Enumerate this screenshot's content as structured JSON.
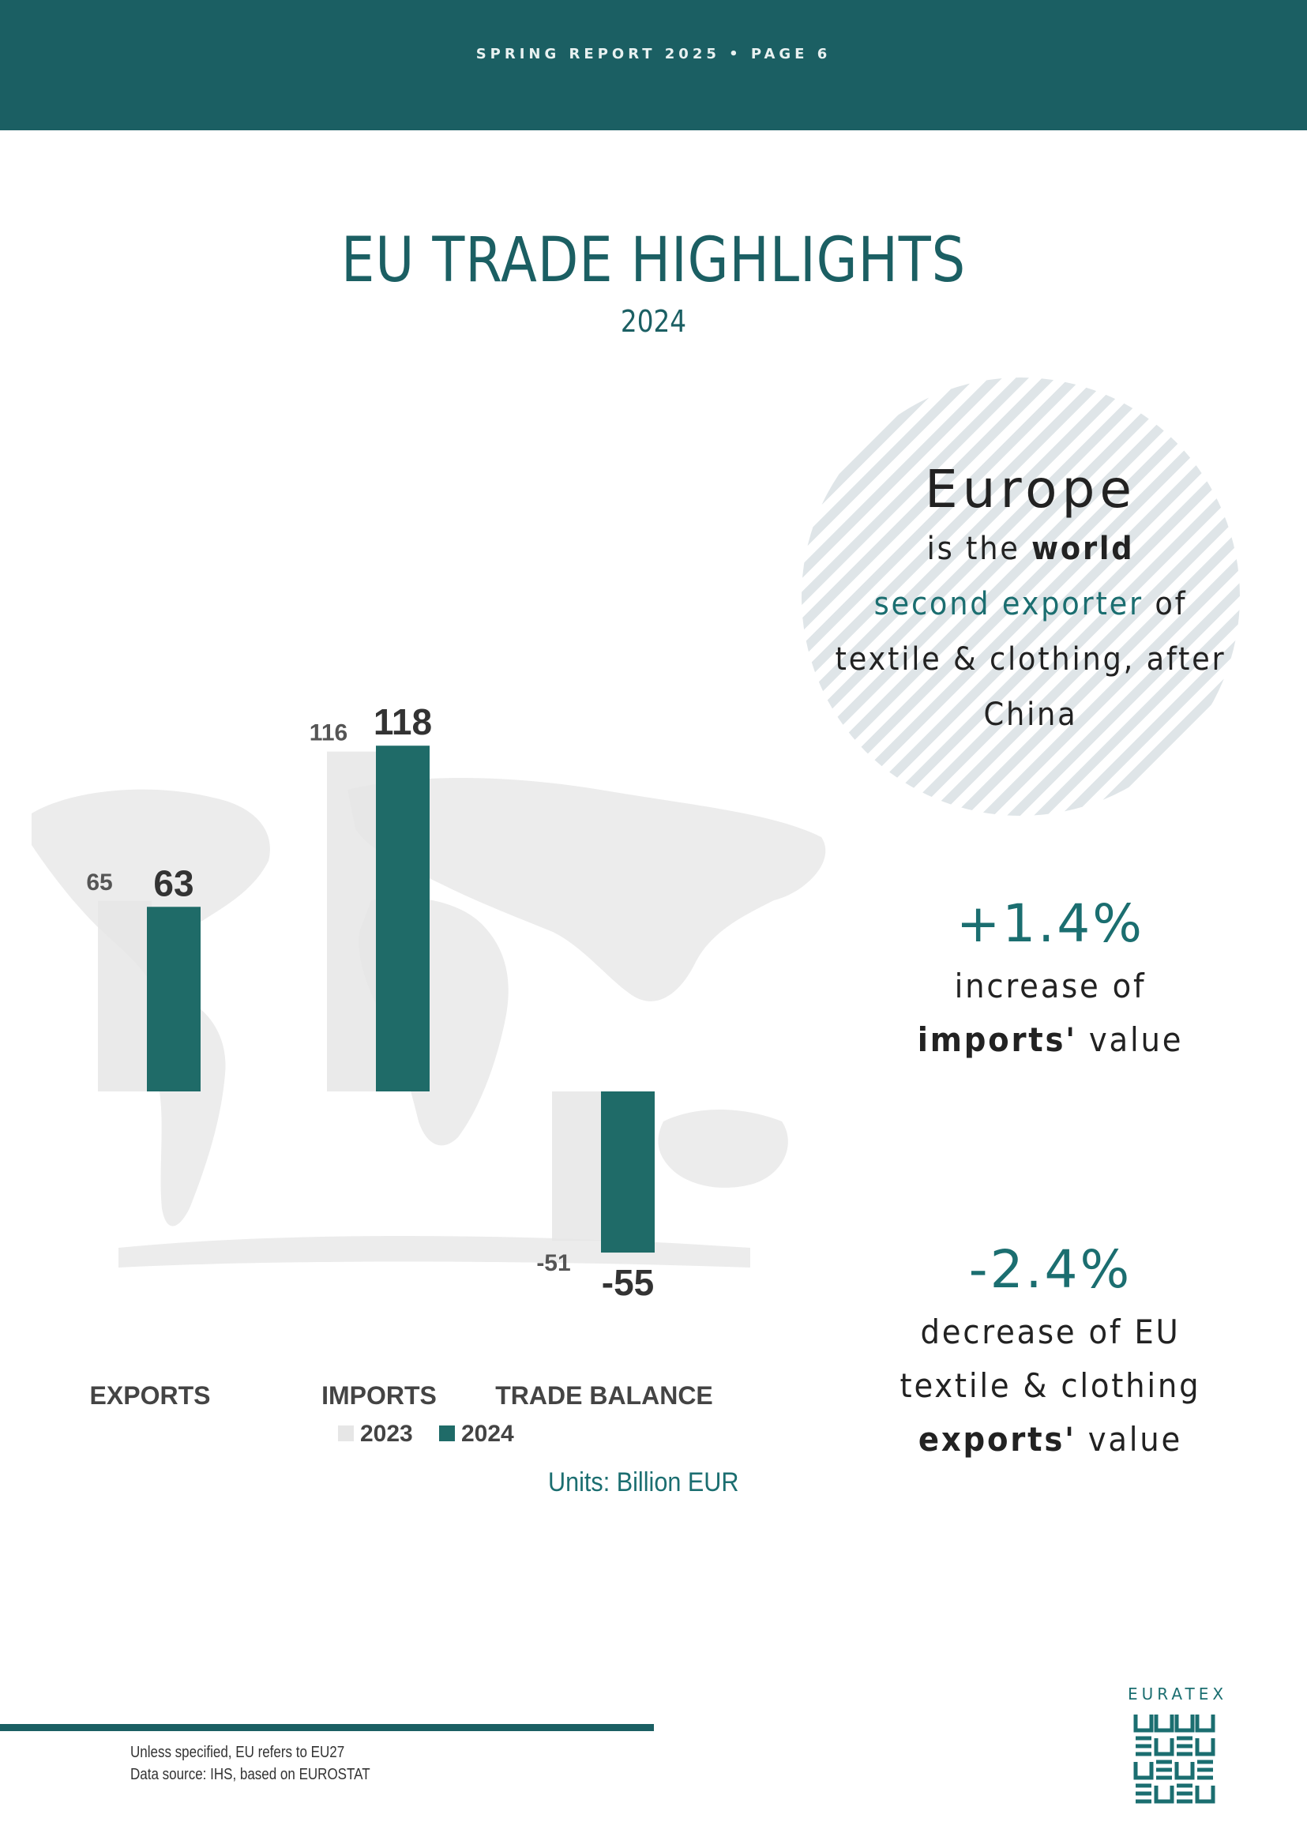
{
  "header": {
    "running_title": "SPRING REPORT 2025 • PAGE 6"
  },
  "page": {
    "title": "EU TRADE HIGHLIGHTS",
    "subtitle": "2024"
  },
  "highlight": {
    "line1": "Europe",
    "line2_pre": "is the ",
    "line2_bold": "world",
    "line3_teal": "second exporter",
    "line3_post": " of",
    "line4": "textile & clothing, after",
    "line5": "China"
  },
  "stats": [
    {
      "value": "+1.4%",
      "line1": "increase of",
      "line2_bold": "imports'",
      "line2_post": " value"
    },
    {
      "value": "-2.4%",
      "line1": "decrease of EU",
      "line2": "textile & clothing",
      "line3_bold": "exports'",
      "line3_post": " value"
    }
  ],
  "chart_data": {
    "type": "bar",
    "categories": [
      "EXPORTS",
      "IMPORTS",
      "TRADE BALANCE"
    ],
    "series": [
      {
        "name": "2023",
        "values": [
          65,
          116,
          -51
        ],
        "color": "#e6e6e6"
      },
      {
        "name": "2024",
        "values": [
          63,
          118,
          -55
        ],
        "color": "#1f6b68"
      }
    ],
    "units": "Units: Billion EUR",
    "legend_placement": "bottom",
    "grid": false
  },
  "footer": {
    "note1": "Unless specified, EU refers to EU27",
    "note2": "Data source: IHS, based on EUROSTAT",
    "logo_text": "EURATEX"
  },
  "colors": {
    "brand": "#1b5f63",
    "accent": "#1b6e70",
    "stripe": "#dfe5e8"
  }
}
